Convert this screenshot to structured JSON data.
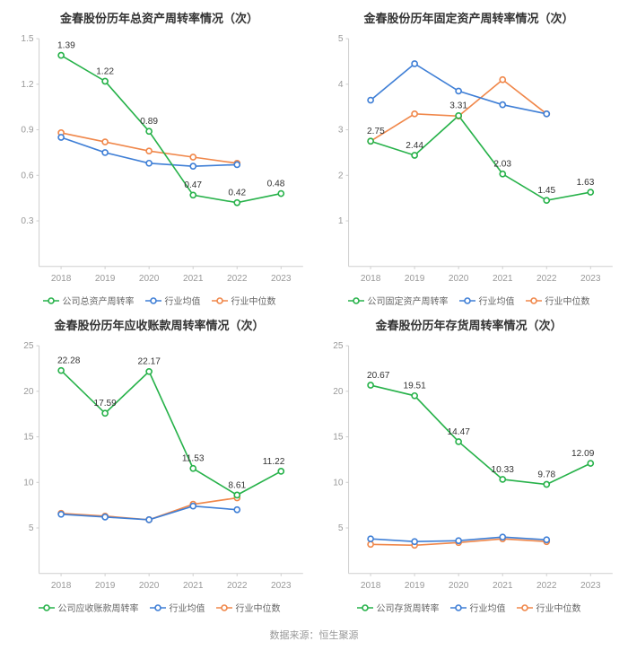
{
  "source_text": "数据来源：恒生聚源",
  "colors": {
    "company": "#27b24a",
    "avg": "#3f7fd6",
    "median": "#f0874a",
    "axis": "#cfcfcf",
    "tick_text": "#999999",
    "label_text": "#333333",
    "grid_bg": "#ffffff"
  },
  "common": {
    "years": [
      "2018",
      "2019",
      "2020",
      "2021",
      "2022",
      "2023"
    ],
    "marker_radius": 3,
    "line_width": 1.6,
    "tick_font_size": 10,
    "label_font_size": 10,
    "title_font_size": 13
  },
  "charts": [
    {
      "id": "total_asset_turnover",
      "title": "金春股份历年总资产周转率情况（次）",
      "ylim": [
        0,
        1.5
      ],
      "ytick_step": 0.3,
      "ytick_decimals": 1,
      "legend_company": "公司总资产周转率",
      "series": {
        "company": [
          1.39,
          1.22,
          0.89,
          0.47,
          0.42,
          0.48
        ],
        "avg": [
          0.85,
          0.75,
          0.68,
          0.66,
          0.67,
          null
        ],
        "median": [
          0.88,
          0.82,
          0.76,
          0.72,
          0.68,
          null
        ]
      },
      "labels": [
        {
          "x": "2018",
          "v": 1.39
        },
        {
          "x": "2019",
          "v": 1.22
        },
        {
          "x": "2020",
          "v": 0.89
        },
        {
          "x": "2021",
          "v": 0.47
        },
        {
          "x": "2022",
          "v": 0.42
        },
        {
          "x": "2023",
          "v": 0.48
        }
      ]
    },
    {
      "id": "fixed_asset_turnover",
      "title": "金春股份历年固定资产周转率情况（次）",
      "ylim": [
        0,
        5
      ],
      "ytick_step": 1,
      "ytick_decimals": 0,
      "legend_company": "公司固定资产周转率",
      "series": {
        "company": [
          2.75,
          2.44,
          3.31,
          2.03,
          1.45,
          1.63
        ],
        "avg": [
          3.65,
          4.45,
          3.85,
          3.55,
          3.35,
          null
        ],
        "median": [
          2.75,
          3.35,
          3.3,
          4.1,
          3.35,
          null
        ]
      },
      "labels": [
        {
          "x": "2018",
          "v": 2.75
        },
        {
          "x": "2019",
          "v": 2.44
        },
        {
          "x": "2020",
          "v": 3.31
        },
        {
          "x": "2021",
          "v": 2.03
        },
        {
          "x": "2022",
          "v": 1.45
        },
        {
          "x": "2023",
          "v": 1.63
        }
      ]
    },
    {
      "id": "receivables_turnover",
      "title": "金春股份历年应收账款周转率情况（次）",
      "ylim": [
        0,
        25
      ],
      "ytick_step": 5,
      "ytick_decimals": 0,
      "legend_company": "公司应收账款周转率",
      "series": {
        "company": [
          22.28,
          17.59,
          22.17,
          11.53,
          8.61,
          11.22
        ],
        "avg": [
          6.5,
          6.2,
          5.9,
          7.4,
          7.0,
          null
        ],
        "median": [
          6.6,
          6.3,
          5.9,
          7.6,
          8.3,
          null
        ]
      },
      "labels": [
        {
          "x": "2018",
          "v": 22.28
        },
        {
          "x": "2019",
          "v": 17.59
        },
        {
          "x": "2020",
          "v": 22.17
        },
        {
          "x": "2021",
          "v": 11.53
        },
        {
          "x": "2022",
          "v": 8.61
        },
        {
          "x": "2023",
          "v": 11.22
        }
      ]
    },
    {
      "id": "inventory_turnover",
      "title": "金春股份历年存货周转率情况（次）",
      "ylim": [
        0,
        25
      ],
      "ytick_step": 5,
      "ytick_decimals": 0,
      "legend_company": "公司存货周转率",
      "series": {
        "company": [
          20.67,
          19.51,
          14.47,
          10.33,
          9.78,
          12.09
        ],
        "avg": [
          3.8,
          3.5,
          3.6,
          4.0,
          3.7,
          null
        ],
        "median": [
          3.2,
          3.1,
          3.4,
          3.8,
          3.5,
          null
        ]
      },
      "labels": [
        {
          "x": "2018",
          "v": 20.67
        },
        {
          "x": "2019",
          "v": 19.51
        },
        {
          "x": "2020",
          "v": 14.47
        },
        {
          "x": "2021",
          "v": 10.33
        },
        {
          "x": "2022",
          "v": 9.78
        },
        {
          "x": "2023",
          "v": 12.09
        }
      ]
    }
  ],
  "legend_avg": "行业均值",
  "legend_median": "行业中位数"
}
